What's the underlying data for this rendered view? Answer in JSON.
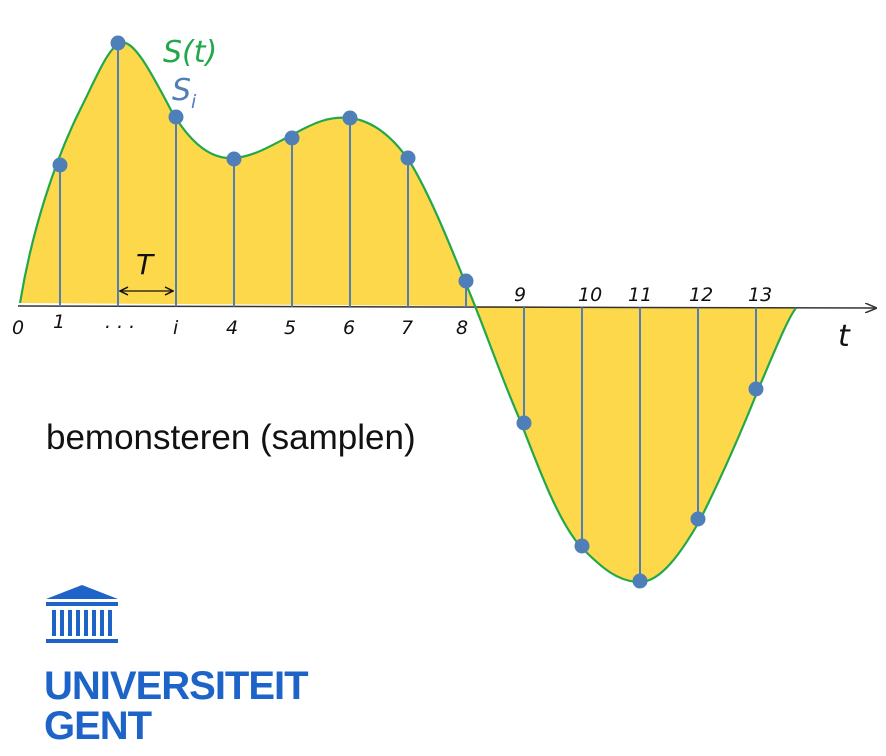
{
  "diagram": {
    "signal_label": "S(t)",
    "sample_label_main": "S",
    "sample_label_sub": "i",
    "period_label": "T",
    "axis_label": "t",
    "caption": "bemonsteren (samplen)",
    "tick_labels": [
      "0",
      "1",
      ". . .",
      "i",
      "4",
      "5",
      "6",
      "7",
      "8",
      "9",
      "10",
      "11",
      "12",
      "13"
    ],
    "colors": {
      "fill": "#FDD84A",
      "curve": "#22A84B",
      "sample": "#4F7FB8",
      "axis": "#333333",
      "signal_label": "#22A84B",
      "sample_label": "#4F7FB8"
    }
  },
  "logo": {
    "name_line1": "UNIVERSITEIT",
    "name_line2": "GENT",
    "icon": "building-columns-icon",
    "color": "#1E64C8"
  }
}
